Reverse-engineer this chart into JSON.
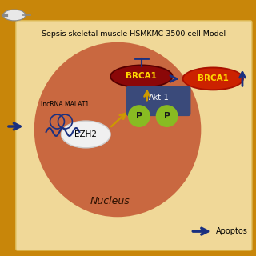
{
  "bg_color": "#C8860A",
  "panel_color": "#F0D898",
  "title": "Sepsis skeletal muscle HSMKMC 3500 cell Model",
  "title_fontsize": 6.8,
  "nucleus_color": "#C96840",
  "brca1_text_color": "#FFD700",
  "akt1_color": "#3A4A7A",
  "ezh2_color": "#F0F0F0",
  "phospho_color": "#88BB22",
  "arrow_color": "#1A3080",
  "gold_arrow_color": "#CC9900",
  "lncrna_color": "#1A3080",
  "apoptosis_text": "Apoptos",
  "nucleus_label": "Nucleus",
  "lncrna_label": "lncRNA MALAT1",
  "ezh2_label": "EZH2",
  "akt1_label": "Akt-1",
  "p_label": "P"
}
